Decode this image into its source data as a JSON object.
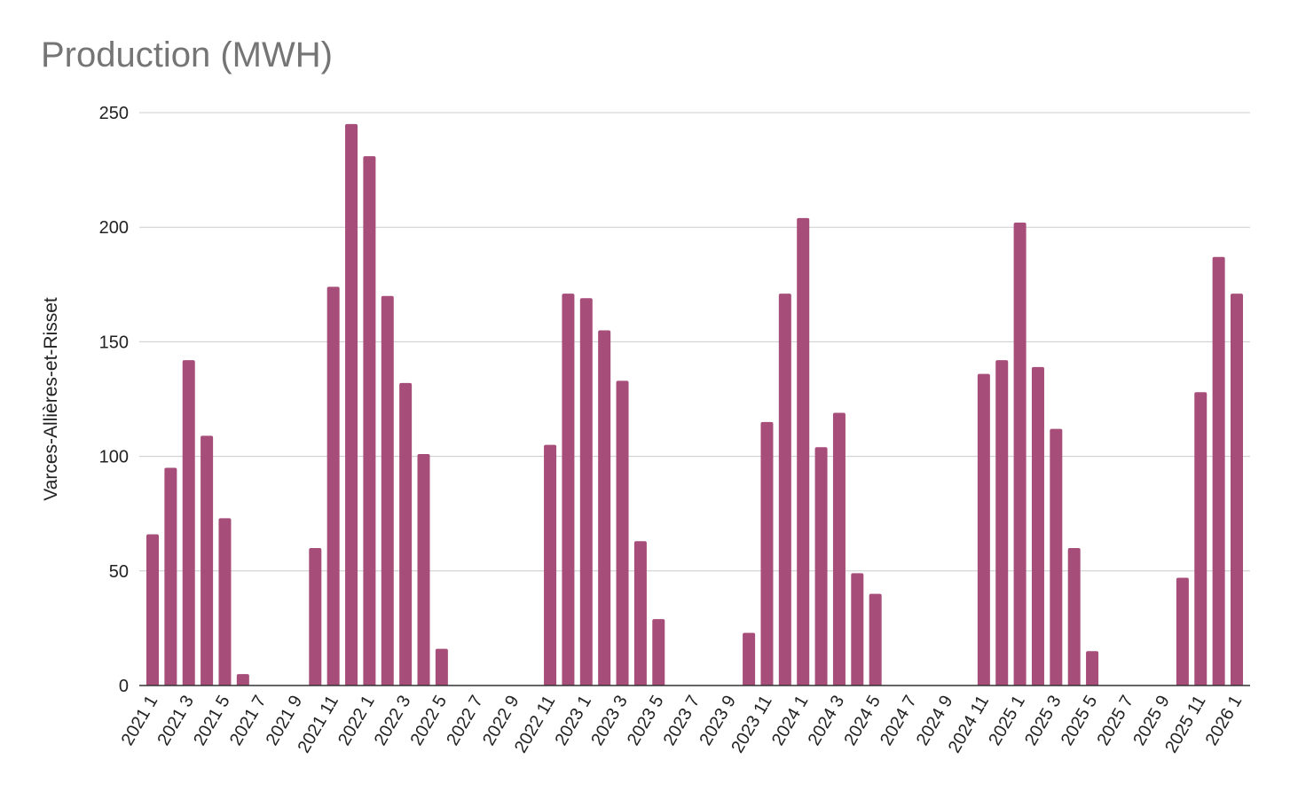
{
  "chart_data": {
    "type": "bar",
    "title": "Production (MWH)",
    "xlabel": "",
    "ylabel": "Varces-Allières-et-Risset",
    "ylim": [
      0,
      250
    ],
    "yticks": [
      0,
      50,
      100,
      150,
      200,
      250
    ],
    "grid": true,
    "bar_color": "#a64d79",
    "categories": [
      "2021 1",
      "2021 2",
      "2021 3",
      "2021 4",
      "2021 5",
      "2021 6",
      "2021 7",
      "2021 8",
      "2021 9",
      "2021 10",
      "2021 11",
      "2021 12",
      "2022 1",
      "2022 2",
      "2022 3",
      "2022 4",
      "2022 5",
      "2022 6",
      "2022 7",
      "2022 8",
      "2022 9",
      "2022 10",
      "2022 11",
      "2022 12",
      "2023 1",
      "2023 2",
      "2023 3",
      "2023 4",
      "2023 5",
      "2023 6",
      "2023 7",
      "2023 8",
      "2023 9",
      "2023 10",
      "2023 11",
      "2023 12",
      "2024 1",
      "2024 2",
      "2024 3",
      "2024 4",
      "2024 5",
      "2024 6",
      "2024 7",
      "2024 8",
      "2024 9",
      "2024 10",
      "2024 11",
      "2024 12",
      "2025 1",
      "2025 2",
      "2025 3",
      "2025 4",
      "2025 5",
      "2025 6",
      "2025 7",
      "2025 8",
      "2025 9",
      "2025 10",
      "2025 11",
      "2025 12",
      "2026 1"
    ],
    "values": [
      66,
      95,
      142,
      109,
      73,
      5,
      0,
      0,
      0,
      60,
      174,
      245,
      231,
      170,
      132,
      101,
      16,
      0,
      0,
      0,
      0,
      0,
      105,
      171,
      169,
      155,
      133,
      63,
      29,
      0,
      0,
      0,
      0,
      23,
      115,
      171,
      204,
      104,
      119,
      49,
      40,
      0,
      0,
      0,
      0,
      0,
      136,
      142,
      202,
      139,
      112,
      60,
      15,
      0,
      0,
      0,
      0,
      47,
      128,
      187,
      171
    ],
    "tick_label_every": 2
  }
}
